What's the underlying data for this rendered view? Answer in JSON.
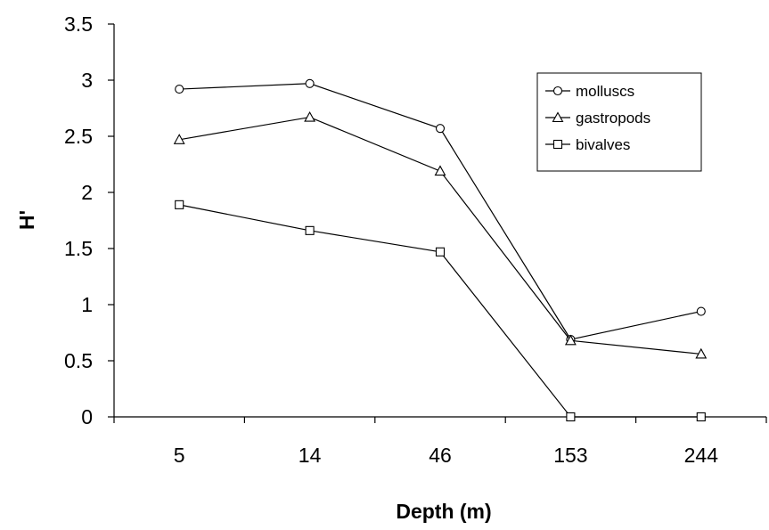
{
  "chart_data": {
    "type": "line",
    "title": "",
    "xlabel": "Depth (m)",
    "ylabel": "H'",
    "categories": [
      "5",
      "14",
      "46",
      "153",
      "244"
    ],
    "ylim": [
      0,
      3.5
    ],
    "yticks": [
      "0",
      "0.5",
      "1",
      "1.5",
      "2",
      "2.5",
      "3",
      "3.5"
    ],
    "grid": false,
    "legend_position": "top-right",
    "series": [
      {
        "name": "molluscs",
        "marker": "circle",
        "color": "#000000",
        "values": [
          2.92,
          2.97,
          2.57,
          0.69,
          0.94
        ]
      },
      {
        "name": "gastropods",
        "marker": "triangle",
        "color": "#000000",
        "values": [
          2.47,
          2.67,
          2.19,
          0.68,
          0.56
        ]
      },
      {
        "name": "bivalves",
        "marker": "square",
        "color": "#000000",
        "values": [
          1.89,
          1.66,
          1.47,
          0.0,
          0.0
        ]
      }
    ]
  }
}
